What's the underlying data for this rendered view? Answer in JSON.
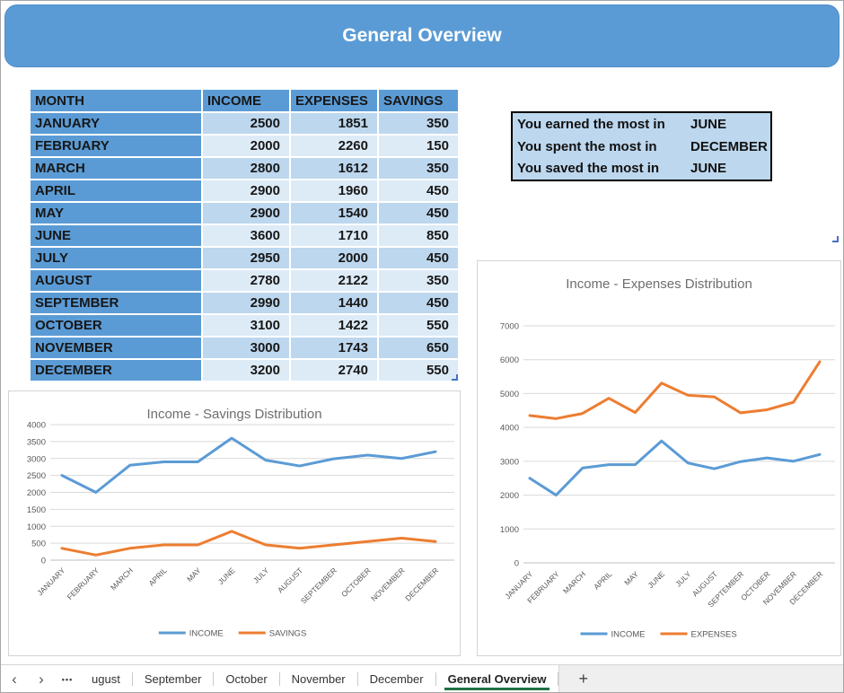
{
  "banner": {
    "title": "General Overview"
  },
  "table": {
    "headers": [
      "MONTH",
      "INCOME",
      "EXPENSES",
      "SAVINGS"
    ],
    "rows": [
      {
        "month": "JANUARY",
        "income": 2500,
        "expenses": 1851,
        "savings": 350
      },
      {
        "month": "FEBRUARY",
        "income": 2000,
        "expenses": 2260,
        "savings": 150
      },
      {
        "month": "MARCH",
        "income": 2800,
        "expenses": 1612,
        "savings": 350
      },
      {
        "month": "APRIL",
        "income": 2900,
        "expenses": 1960,
        "savings": 450
      },
      {
        "month": "MAY",
        "income": 2900,
        "expenses": 1540,
        "savings": 450
      },
      {
        "month": "JUNE",
        "income": 3600,
        "expenses": 1710,
        "savings": 850
      },
      {
        "month": "JULY",
        "income": 2950,
        "expenses": 2000,
        "savings": 450
      },
      {
        "month": "AUGUST",
        "income": 2780,
        "expenses": 2122,
        "savings": 350
      },
      {
        "month": "SEPTEMBER",
        "income": 2990,
        "expenses": 1440,
        "savings": 450
      },
      {
        "month": "OCTOBER",
        "income": 3100,
        "expenses": 1422,
        "savings": 550
      },
      {
        "month": "NOVEMBER",
        "income": 3000,
        "expenses": 1743,
        "savings": 650
      },
      {
        "month": "DECEMBER",
        "income": 3200,
        "expenses": 2740,
        "savings": 550
      }
    ]
  },
  "summary": {
    "rows": [
      {
        "label": "You earned the most in",
        "value": "JUNE"
      },
      {
        "label": "You spent the most in",
        "value": "DECEMBER"
      },
      {
        "label": "You saved the most in",
        "value": "JUNE"
      }
    ]
  },
  "chart_data": [
    {
      "type": "line",
      "title": "Income - Savings Distribution",
      "categories": [
        "JANUARY",
        "FEBRUARY",
        "MARCH",
        "APRIL",
        "MAY",
        "JUNE",
        "JULY",
        "AUGUST",
        "SEPTEMBER",
        "OCTOBER",
        "NOVEMBER",
        "DECEMBER"
      ],
      "series": [
        {
          "name": "INCOME",
          "color": "#5B9BD5",
          "values": [
            2500,
            2000,
            2800,
            2900,
            2900,
            3600,
            2950,
            2780,
            2990,
            3100,
            3000,
            3200
          ]
        },
        {
          "name": "SAVINGS",
          "color": "#ED7D31",
          "values": [
            350,
            150,
            350,
            450,
            450,
            850,
            450,
            350,
            450,
            550,
            650,
            550
          ]
        }
      ],
      "stacked": false,
      "ylim": [
        0,
        4000
      ],
      "ytick_step": 500,
      "grid": true,
      "legend_position": "bottom"
    },
    {
      "type": "line",
      "title": "Income - Expenses Distribution",
      "categories": [
        "JANUARY",
        "FEBRUARY",
        "MARCH",
        "APRIL",
        "MAY",
        "JUNE",
        "JULY",
        "AUGUST",
        "SEPTEMBER",
        "OCTOBER",
        "NOVEMBER",
        "DECEMBER"
      ],
      "series": [
        {
          "name": "INCOME",
          "color": "#5B9BD5",
          "values": [
            2500,
            2000,
            2800,
            2900,
            2900,
            3600,
            2950,
            2780,
            2990,
            3100,
            3000,
            3200
          ]
        },
        {
          "name": "EXPENSES",
          "color": "#ED7D31",
          "values": [
            1851,
            2260,
            1612,
            1960,
            1540,
            1710,
            2000,
            2122,
            1440,
            1422,
            1743,
            2740
          ]
        }
      ],
      "stacked": true,
      "ylim": [
        0,
        7000
      ],
      "ytick_step": 1000,
      "grid": true,
      "legend_position": "bottom"
    }
  ],
  "sheet_tabs": {
    "prev_icon": "‹",
    "next_icon": "›",
    "overflow_icon": "•••",
    "tabs": [
      {
        "label": "ugust",
        "active": false
      },
      {
        "label": "September",
        "active": false
      },
      {
        "label": "October",
        "active": false
      },
      {
        "label": "November",
        "active": false
      },
      {
        "label": "December",
        "active": false
      },
      {
        "label": "General Overview",
        "active": true
      }
    ],
    "add_label": "+"
  },
  "colors": {
    "accent_blue": "#5B9BD5",
    "band_medium": "#BDD7EE",
    "band_light": "#DDEBF7",
    "orange": "#ED7D31",
    "active_tab_underline": "#1E7145",
    "chart_text": "#595959",
    "gridline": "#D9D9D9"
  }
}
